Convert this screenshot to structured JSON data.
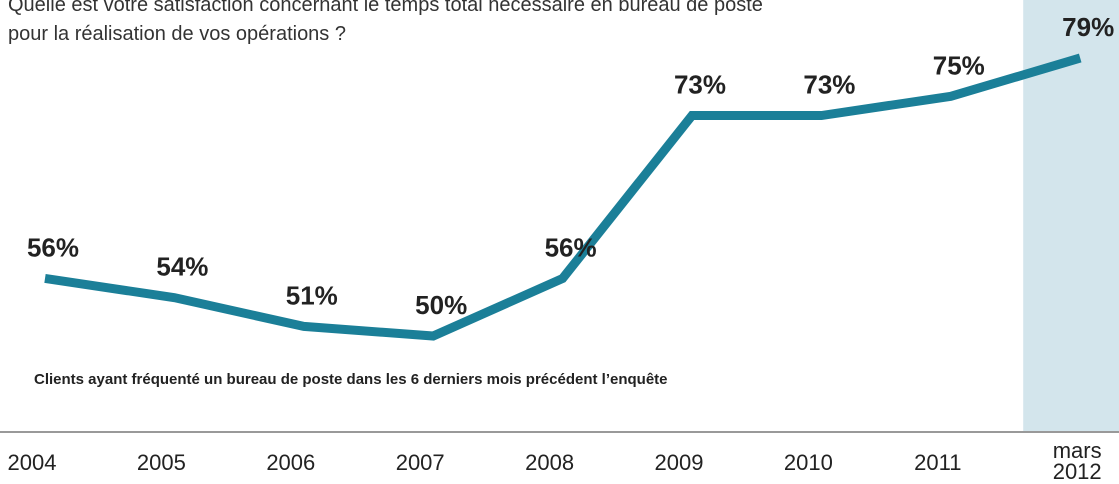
{
  "chart_data": {
    "type": "line",
    "title": "Quelle est votre satisfaction concernant le temps total nécessaire en bureau de poste pour la réalisation de vos opérations ?",
    "note": "Clients ayant fréquenté un bureau de poste dans les 6 derniers mois précédent l’enquête",
    "categories": [
      "2004",
      "2005",
      "2006",
      "2007",
      "2008",
      "2009",
      "2010",
      "2011",
      "mars 2012"
    ],
    "series": [
      {
        "color": "#1b7f98",
        "values": [
          56,
          54,
          51,
          50,
          56,
          73,
          73,
          75,
          79
        ],
        "value_labels": [
          "56%",
          "54%",
          "51%",
          "50%",
          "56%",
          "73%",
          "73%",
          "75%",
          "79%"
        ]
      }
    ],
    "highlight_color": "#d3e5ec"
  }
}
